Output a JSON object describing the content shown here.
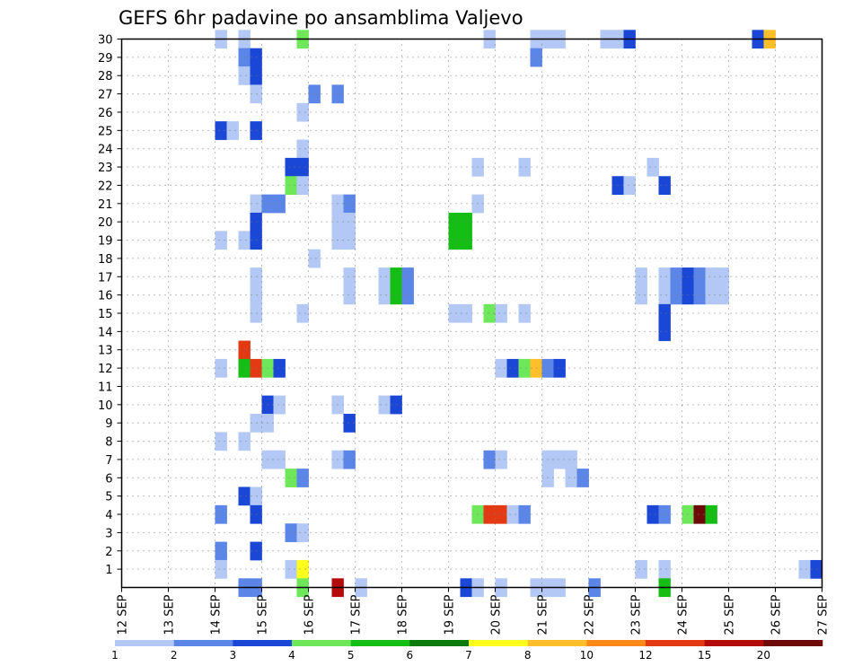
{
  "chart_data": {
    "type": "heatmap",
    "title": "GEFS 6hr padavine po ansamblima Valjevo",
    "xlabel": "",
    "ylabel": "",
    "x_range": [
      0,
      60
    ],
    "y_range": [
      0,
      30
    ],
    "x_ticks": [
      {
        "t": 0,
        "label": "12 SEP"
      },
      {
        "t": 4,
        "label": "13 SEP"
      },
      {
        "t": 8,
        "label": "14 SEP"
      },
      {
        "t": 12,
        "label": "15 SEP"
      },
      {
        "t": 16,
        "label": "16 SEP"
      },
      {
        "t": 20,
        "label": "17 SEP"
      },
      {
        "t": 24,
        "label": "18 SEP"
      },
      {
        "t": 28,
        "label": "19 SEP"
      },
      {
        "t": 32,
        "label": "20 SEP"
      },
      {
        "t": 36,
        "label": "21 SEP"
      },
      {
        "t": 40,
        "label": "22 SEP"
      },
      {
        "t": 44,
        "label": "23 SEP"
      },
      {
        "t": 48,
        "label": "24 SEP"
      },
      {
        "t": 52,
        "label": "25 SEP"
      },
      {
        "t": 56,
        "label": "26 SEP"
      },
      {
        "t": 60,
        "label": "27 SEP"
      }
    ],
    "y_ticks": [
      "1",
      "2",
      "3",
      "4",
      "5",
      "6",
      "7",
      "8",
      "9",
      "10",
      "11",
      "12",
      "13",
      "14",
      "15",
      "16",
      "17",
      "18",
      "19",
      "20",
      "21",
      "22",
      "23",
      "24",
      "25",
      "26",
      "27",
      "28",
      "29",
      "30"
    ],
    "grid": true,
    "legend": {
      "placement": "bottom",
      "colors": [
        "#b3c8f5",
        "#5b86e8",
        "#1a47d6",
        "#6ee85a",
        "#14be14",
        "#0a7a0a",
        "#ffff1e",
        "#ffbf2a",
        "#ff8a1a",
        "#e43a14",
        "#b40a0a",
        "#6e0a0a"
      ],
      "labels": [
        "1",
        "2",
        "3",
        "4",
        "5",
        "6",
        "7",
        "8",
        "10",
        "12",
        "15",
        "20"
      ]
    },
    "note_cells": "each cell: member m (0 = bottom row), 6-hour step t (0 = 12 SEP 00z), level c = color class",
    "cells": [
      {
        "m": 30,
        "t": 8.5,
        "c": 0
      },
      {
        "m": 30,
        "t": 10.5,
        "c": 0
      },
      {
        "m": 30,
        "t": 15.5,
        "c": 3
      },
      {
        "m": 30,
        "t": 31.5,
        "c": 0
      },
      {
        "m": 30,
        "t": 35.5,
        "c": 0
      },
      {
        "m": 30,
        "t": 36.5,
        "c": 0
      },
      {
        "m": 30,
        "t": 37.5,
        "c": 0
      },
      {
        "m": 30,
        "t": 41.5,
        "c": 0
      },
      {
        "m": 30,
        "t": 42.5,
        "c": 0
      },
      {
        "m": 30,
        "t": 43.5,
        "c": 2
      },
      {
        "m": 30,
        "t": 54.5,
        "c": 2
      },
      {
        "m": 30,
        "t": 55.5,
        "c": 7
      },
      {
        "m": 29,
        "t": 10.5,
        "c": 1
      },
      {
        "m": 29,
        "t": 11.5,
        "c": 2
      },
      {
        "m": 29,
        "t": 35.5,
        "c": 1
      },
      {
        "m": 28,
        "t": 10.5,
        "c": 0
      },
      {
        "m": 28,
        "t": 11.5,
        "c": 2
      },
      {
        "m": 27,
        "t": 11.5,
        "c": 0
      },
      {
        "m": 27,
        "t": 16.5,
        "c": 1
      },
      {
        "m": 27,
        "t": 18.5,
        "c": 1
      },
      {
        "m": 26,
        "t": 15.5,
        "c": 0
      },
      {
        "m": 25,
        "t": 8.5,
        "c": 2
      },
      {
        "m": 25,
        "t": 9.5,
        "c": 0
      },
      {
        "m": 25,
        "t": 11.5,
        "c": 2
      },
      {
        "m": 24,
        "t": 15.5,
        "c": 0
      },
      {
        "m": 23,
        "t": 14.5,
        "c": 2
      },
      {
        "m": 23,
        "t": 15.5,
        "c": 2
      },
      {
        "m": 23,
        "t": 30.5,
        "c": 0
      },
      {
        "m": 23,
        "t": 34.5,
        "c": 0
      },
      {
        "m": 23,
        "t": 45.5,
        "c": 0
      },
      {
        "m": 22,
        "t": 14.5,
        "c": 3
      },
      {
        "m": 22,
        "t": 15.5,
        "c": 0
      },
      {
        "m": 22,
        "t": 42.5,
        "c": 2
      },
      {
        "m": 22,
        "t": 43.5,
        "c": 0
      },
      {
        "m": 22,
        "t": 46.5,
        "c": 2
      },
      {
        "m": 21,
        "t": 11.5,
        "c": 0
      },
      {
        "m": 21,
        "t": 12.5,
        "c": 1
      },
      {
        "m": 21,
        "t": 13.5,
        "c": 1
      },
      {
        "m": 21,
        "t": 18.5,
        "c": 0
      },
      {
        "m": 21,
        "t": 19.5,
        "c": 1
      },
      {
        "m": 21,
        "t": 30.5,
        "c": 0
      },
      {
        "m": 20,
        "t": 11.5,
        "c": 2
      },
      {
        "m": 20,
        "t": 18.5,
        "c": 0
      },
      {
        "m": 20,
        "t": 19.5,
        "c": 0
      },
      {
        "m": 20,
        "t": 28.5,
        "c": 4
      },
      {
        "m": 20,
        "t": 29.5,
        "c": 4
      },
      {
        "m": 19,
        "t": 8.5,
        "c": 0
      },
      {
        "m": 19,
        "t": 10.5,
        "c": 0
      },
      {
        "m": 19,
        "t": 11.5,
        "c": 2
      },
      {
        "m": 19,
        "t": 18.5,
        "c": 0
      },
      {
        "m": 19,
        "t": 19.5,
        "c": 0
      },
      {
        "m": 19,
        "t": 28.5,
        "c": 4
      },
      {
        "m": 19,
        "t": 29.5,
        "c": 4
      },
      {
        "m": 18,
        "t": 16.5,
        "c": 0
      },
      {
        "m": 17,
        "t": 11.5,
        "c": 0
      },
      {
        "m": 17,
        "t": 19.5,
        "c": 0
      },
      {
        "m": 17,
        "t": 22.5,
        "c": 0
      },
      {
        "m": 17,
        "t": 23.5,
        "c": 4
      },
      {
        "m": 17,
        "t": 24.5,
        "c": 1
      },
      {
        "m": 17,
        "t": 44.5,
        "c": 0
      },
      {
        "m": 17,
        "t": 46.5,
        "c": 0
      },
      {
        "m": 17,
        "t": 47.5,
        "c": 1
      },
      {
        "m": 17,
        "t": 48.5,
        "c": 2
      },
      {
        "m": 17,
        "t": 49.5,
        "c": 1
      },
      {
        "m": 17,
        "t": 50.5,
        "c": 0
      },
      {
        "m": 17,
        "t": 51.5,
        "c": 0
      },
      {
        "m": 16,
        "t": 11.5,
        "c": 0
      },
      {
        "m": 16,
        "t": 19.5,
        "c": 0
      },
      {
        "m": 16,
        "t": 22.5,
        "c": 0
      },
      {
        "m": 16,
        "t": 23.5,
        "c": 4
      },
      {
        "m": 16,
        "t": 24.5,
        "c": 1
      },
      {
        "m": 16,
        "t": 44.5,
        "c": 0
      },
      {
        "m": 16,
        "t": 46.5,
        "c": 0
      },
      {
        "m": 16,
        "t": 47.5,
        "c": 1
      },
      {
        "m": 16,
        "t": 48.5,
        "c": 2
      },
      {
        "m": 16,
        "t": 49.5,
        "c": 1
      },
      {
        "m": 16,
        "t": 50.5,
        "c": 0
      },
      {
        "m": 16,
        "t": 51.5,
        "c": 0
      },
      {
        "m": 15,
        "t": 11.5,
        "c": 0
      },
      {
        "m": 15,
        "t": 15.5,
        "c": 0
      },
      {
        "m": 15,
        "t": 28.5,
        "c": 0
      },
      {
        "m": 15,
        "t": 29.5,
        "c": 0
      },
      {
        "m": 15,
        "t": 31.5,
        "c": 3
      },
      {
        "m": 15,
        "t": 32.5,
        "c": 0
      },
      {
        "m": 15,
        "t": 34.5,
        "c": 0
      },
      {
        "m": 15,
        "t": 46.5,
        "c": 2
      },
      {
        "m": 14,
        "t": 46.5,
        "c": 2
      },
      {
        "m": 13,
        "t": 10.5,
        "c": 9
      },
      {
        "m": 12,
        "t": 8.5,
        "c": 0
      },
      {
        "m": 12,
        "t": 10.5,
        "c": 4
      },
      {
        "m": 12,
        "t": 11.5,
        "c": 9
      },
      {
        "m": 12,
        "t": 12.5,
        "c": 3
      },
      {
        "m": 12,
        "t": 13.5,
        "c": 2
      },
      {
        "m": 12,
        "t": 32.5,
        "c": 0
      },
      {
        "m": 12,
        "t": 33.5,
        "c": 2
      },
      {
        "m": 12,
        "t": 34.5,
        "c": 3
      },
      {
        "m": 12,
        "t": 35.5,
        "c": 7
      },
      {
        "m": 12,
        "t": 36.5,
        "c": 1
      },
      {
        "m": 12,
        "t": 37.5,
        "c": 2
      },
      {
        "m": 10,
        "t": 12.5,
        "c": 2
      },
      {
        "m": 10,
        "t": 13.5,
        "c": 0
      },
      {
        "m": 10,
        "t": 18.5,
        "c": 0
      },
      {
        "m": 10,
        "t": 22.5,
        "c": 0
      },
      {
        "m": 10,
        "t": 23.5,
        "c": 2
      },
      {
        "m": 9,
        "t": 11.5,
        "c": 0
      },
      {
        "m": 9,
        "t": 12.5,
        "c": 0
      },
      {
        "m": 9,
        "t": 19.5,
        "c": 2
      },
      {
        "m": 8,
        "t": 8.5,
        "c": 0
      },
      {
        "m": 8,
        "t": 10.5,
        "c": 0
      },
      {
        "m": 7,
        "t": 12.5,
        "c": 0
      },
      {
        "m": 7,
        "t": 13.5,
        "c": 0
      },
      {
        "m": 7,
        "t": 18.5,
        "c": 0
      },
      {
        "m": 7,
        "t": 19.5,
        "c": 1
      },
      {
        "m": 7,
        "t": 31.5,
        "c": 1
      },
      {
        "m": 7,
        "t": 32.5,
        "c": 0
      },
      {
        "m": 7,
        "t": 36.5,
        "c": 0
      },
      {
        "m": 7,
        "t": 37.5,
        "c": 0
      },
      {
        "m": 7,
        "t": 38.5,
        "c": 0
      },
      {
        "m": 6,
        "t": 14.5,
        "c": 3
      },
      {
        "m": 6,
        "t": 15.5,
        "c": 1
      },
      {
        "m": 6,
        "t": 36.5,
        "c": 0
      },
      {
        "m": 6,
        "t": 38.5,
        "c": 0
      },
      {
        "m": 6,
        "t": 39.5,
        "c": 1
      },
      {
        "m": 5,
        "t": 10.5,
        "c": 2
      },
      {
        "m": 5,
        "t": 11.5,
        "c": 0
      },
      {
        "m": 4,
        "t": 8.5,
        "c": 1
      },
      {
        "m": 4,
        "t": 11.5,
        "c": 2
      },
      {
        "m": 4,
        "t": 30.5,
        "c": 3
      },
      {
        "m": 4,
        "t": 31.5,
        "c": 9
      },
      {
        "m": 4,
        "t": 32.5,
        "c": 9
      },
      {
        "m": 4,
        "t": 33.5,
        "c": 0
      },
      {
        "m": 4,
        "t": 34.5,
        "c": 1
      },
      {
        "m": 4,
        "t": 45.5,
        "c": 2
      },
      {
        "m": 4,
        "t": 46.5,
        "c": 1
      },
      {
        "m": 4,
        "t": 48.5,
        "c": 3
      },
      {
        "m": 4,
        "t": 49.5,
        "c": 11
      },
      {
        "m": 4,
        "t": 50.5,
        "c": 4
      },
      {
        "m": 3,
        "t": 14.5,
        "c": 1
      },
      {
        "m": 3,
        "t": 15.5,
        "c": 0
      },
      {
        "m": 2,
        "t": 8.5,
        "c": 1
      },
      {
        "m": 2,
        "t": 11.5,
        "c": 2
      },
      {
        "m": 1,
        "t": 8.5,
        "c": 0
      },
      {
        "m": 1,
        "t": 14.5,
        "c": 0
      },
      {
        "m": 1,
        "t": 15.5,
        "c": 6
      },
      {
        "m": 1,
        "t": 44.5,
        "c": 0
      },
      {
        "m": 1,
        "t": 46.5,
        "c": 0
      },
      {
        "m": 1,
        "t": 58.5,
        "c": 0
      },
      {
        "m": 1,
        "t": 59.5,
        "c": 2
      },
      {
        "m": 0,
        "t": 10.5,
        "c": 1
      },
      {
        "m": 0,
        "t": 11.5,
        "c": 1
      },
      {
        "m": 0,
        "t": 15.5,
        "c": 3
      },
      {
        "m": 0,
        "t": 18.5,
        "c": 10
      },
      {
        "m": 0,
        "t": 20.5,
        "c": 0
      },
      {
        "m": 0,
        "t": 29.5,
        "c": 2
      },
      {
        "m": 0,
        "t": 30.5,
        "c": 0
      },
      {
        "m": 0,
        "t": 32.5,
        "c": 0
      },
      {
        "m": 0,
        "t": 35.5,
        "c": 0
      },
      {
        "m": 0,
        "t": 36.5,
        "c": 0
      },
      {
        "m": 0,
        "t": 37.5,
        "c": 0
      },
      {
        "m": 0,
        "t": 40.5,
        "c": 1
      },
      {
        "m": 0,
        "t": 46.5,
        "c": 4
      }
    ]
  }
}
